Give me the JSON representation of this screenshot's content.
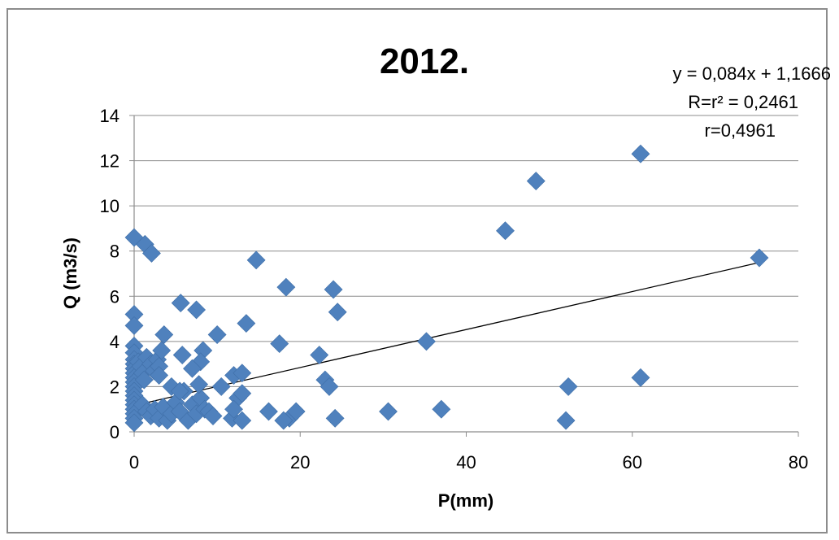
{
  "chart_data": {
    "type": "scatter",
    "title": "2012.",
    "xlabel": "P(mm)",
    "ylabel": "Q (m3/s)",
    "xlim": [
      0,
      80
    ],
    "ylim": [
      0,
      14
    ],
    "xticks": [
      "0",
      "20",
      "40",
      "60",
      "80"
    ],
    "yticks": [
      "0",
      "2",
      "4",
      "6",
      "8",
      "10",
      "12",
      "14"
    ],
    "grid": "horizontal",
    "legend": "none",
    "marker_color": "#4f81bd",
    "trendline_color": "#000000",
    "annotations": [
      "y = 0,084x + 1,1666",
      "R=r² = 0,2461",
      "r=0,4961"
    ],
    "trendline": {
      "slope": 0.084,
      "intercept": 1.1666,
      "x_range": [
        0,
        75
      ]
    },
    "points": [
      [
        0,
        8.6
      ],
      [
        1.3,
        8.3
      ],
      [
        2.1,
        7.9
      ],
      [
        0,
        5.2
      ],
      [
        0,
        4.7
      ],
      [
        0,
        3.8
      ],
      [
        0,
        3.5
      ],
      [
        0,
        3.2
      ],
      [
        0,
        3.0
      ],
      [
        0,
        2.8
      ],
      [
        0,
        2.6
      ],
      [
        0,
        2.4
      ],
      [
        0,
        2.2
      ],
      [
        0,
        2.0
      ],
      [
        0,
        1.8
      ],
      [
        0,
        1.6
      ],
      [
        0,
        1.4
      ],
      [
        0,
        1.2
      ],
      [
        0,
        1.0
      ],
      [
        0,
        0.8
      ],
      [
        0,
        0.6
      ],
      [
        0,
        0.4
      ],
      [
        0.5,
        3.1
      ],
      [
        0.8,
        2.9
      ],
      [
        1.0,
        2.6
      ],
      [
        1.2,
        2.3
      ],
      [
        1.5,
        3.3
      ],
      [
        2.0,
        3.0
      ],
      [
        2.4,
        2.7
      ],
      [
        2.8,
        3.2
      ],
      [
        3.0,
        2.9
      ],
      [
        3.3,
        3.6
      ],
      [
        3.6,
        4.3
      ],
      [
        3.0,
        2.5
      ],
      [
        1.0,
        1.2
      ],
      [
        1.5,
        0.9
      ],
      [
        2.0,
        0.7
      ],
      [
        2.5,
        1.0
      ],
      [
        3.0,
        0.6
      ],
      [
        3.5,
        1.1
      ],
      [
        4.0,
        0.5
      ],
      [
        4.5,
        0.8
      ],
      [
        5.0,
        1.3
      ],
      [
        5.5,
        0.9
      ],
      [
        6.0,
        1.8
      ],
      [
        6.5,
        0.5
      ],
      [
        7.0,
        1.2
      ],
      [
        7.5,
        0.8
      ],
      [
        8.0,
        1.5
      ],
      [
        8.5,
        1.0
      ],
      [
        9.0,
        0.9
      ],
      [
        9.5,
        0.7
      ],
      [
        4.5,
        2.0
      ],
      [
        5.5,
        1.8
      ],
      [
        5.8,
        3.4
      ],
      [
        5.6,
        5.7
      ],
      [
        7.5,
        5.4
      ],
      [
        8.3,
        3.6
      ],
      [
        8.0,
        3.1
      ],
      [
        7.0,
        2.8
      ],
      [
        7.8,
        2.1
      ],
      [
        10.0,
        4.3
      ],
      [
        10.5,
        2.0
      ],
      [
        12.0,
        2.5
      ],
      [
        13.0,
        2.6
      ],
      [
        13.5,
        4.8
      ],
      [
        12.5,
        1.5
      ],
      [
        13.0,
        1.7
      ],
      [
        11.8,
        0.6
      ],
      [
        13.0,
        0.5
      ],
      [
        12.0,
        1.0
      ],
      [
        14.7,
        7.6
      ],
      [
        16.2,
        0.9
      ],
      [
        17.5,
        3.9
      ],
      [
        18.3,
        6.4
      ],
      [
        18.7,
        0.6
      ],
      [
        19.5,
        0.9
      ],
      [
        18.0,
        0.5
      ],
      [
        22.3,
        3.4
      ],
      [
        23.0,
        2.3
      ],
      [
        23.5,
        2.0
      ],
      [
        24.0,
        6.3
      ],
      [
        24.5,
        5.3
      ],
      [
        24.2,
        0.6
      ],
      [
        30.6,
        0.9
      ],
      [
        35.2,
        4.0
      ],
      [
        37.0,
        1.0
      ],
      [
        44.7,
        8.9
      ],
      [
        48.4,
        11.1
      ],
      [
        52.0,
        0.5
      ],
      [
        52.3,
        2.0
      ],
      [
        61.0,
        12.3
      ],
      [
        61.0,
        2.4
      ],
      [
        75.3,
        7.7
      ]
    ]
  }
}
